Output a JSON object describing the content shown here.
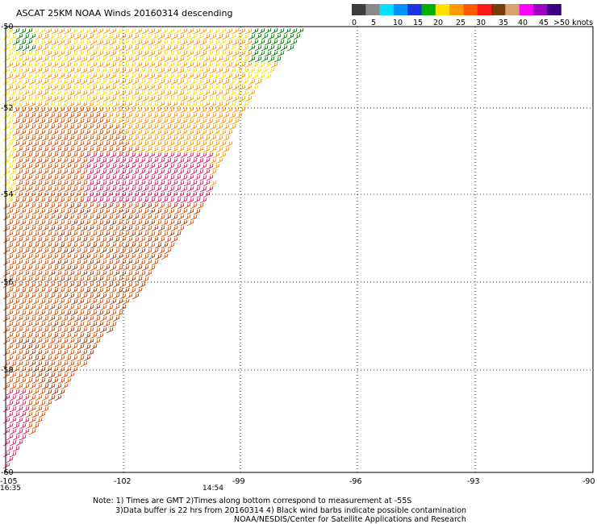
{
  "title": "ASCAT 25KM NOAA Winds 20160314 descending",
  "legend": {
    "ticks": [
      "0",
      "5",
      "10",
      "15",
      "20",
      "25",
      "30",
      "35",
      "40",
      "45",
      ">50 knots"
    ],
    "colors": [
      "#3c3c3c",
      "#8a8a8a",
      "#00e0ff",
      "#0090ff",
      "#1a35e0",
      "#00b000",
      "#ffe000",
      "#ff9900",
      "#ff5a00",
      "#ff1a1a",
      "#7a3a10",
      "#d7a070",
      "#ff00ff",
      "#a000c0",
      "#3a0080"
    ]
  },
  "axes": {
    "lat_labels": [
      "-50",
      "-52",
      "-54",
      "-56",
      "-58",
      "-60"
    ],
    "lon_labels": [
      "-105",
      "-102",
      "-99",
      "-96",
      "-93",
      "-90"
    ]
  },
  "times": {
    "left": "16:35",
    "mid": "14:54",
    "color": "#7a2a90"
  },
  "notes": {
    "line1": "Note: 1) Times are GMT 2)Times along bottom correspond to measurement at -55S",
    "line2": "3)Data buffer is 22 hrs from 20160314 4) Black wind barbs indicate possible contamination",
    "line3": "NOAA/NESDIS/Center for Satellite Applications and Research"
  },
  "wind_colors": {
    "light": "#ffe000",
    "moderate": "#ff9900",
    "strong": "#e05000",
    "brown": "#a04010",
    "gale": "#e02060",
    "green": "#008000"
  }
}
